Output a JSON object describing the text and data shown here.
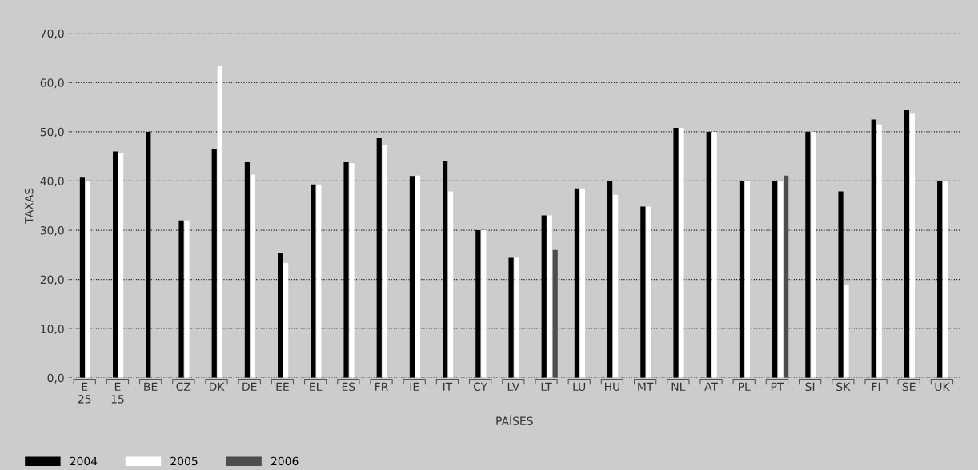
{
  "chart_data": {
    "type": "bar",
    "xlabel": "PAÍSES",
    "ylabel": "TAXAS",
    "categories": [
      "E\n25",
      "E\n15",
      "BE",
      "CZ",
      "DK",
      "DE",
      "EE",
      "EL",
      "ES",
      "FR",
      "IE",
      "IT",
      "CY",
      "LV",
      "LT",
      "LU",
      "HU",
      "MT",
      "NL",
      "AT",
      "PL",
      "PT",
      "SI",
      "SK",
      "FI",
      "SE",
      "UK"
    ],
    "series": [
      {
        "name": "2004",
        "color": "#000000",
        "values": [
          40.7,
          46.0,
          50.0,
          32.0,
          46.5,
          43.8,
          25.3,
          39.3,
          43.8,
          48.7,
          41.0,
          44.1,
          30.0,
          24.4,
          33.0,
          38.5,
          40.0,
          34.8,
          50.8,
          50.0,
          40.0,
          40.0,
          50.0,
          37.9,
          52.5,
          54.4,
          40.0
        ]
      },
      {
        "name": "2005",
        "color": "#ffffff",
        "values": [
          40.0,
          45.6,
          null,
          32.0,
          63.4,
          41.3,
          23.4,
          39.3,
          43.6,
          47.4,
          41.1,
          37.9,
          30.0,
          24.4,
          33.0,
          38.5,
          37.2,
          34.8,
          50.8,
          50.0,
          40.0,
          40.0,
          50.0,
          18.9,
          51.5,
          53.8,
          40.0
        ]
      },
      {
        "name": "2006",
        "color": "#4d4d4d",
        "values": [
          null,
          null,
          null,
          null,
          null,
          null,
          null,
          null,
          null,
          null,
          null,
          null,
          null,
          null,
          26.0,
          null,
          null,
          null,
          null,
          null,
          null,
          41.1,
          null,
          null,
          null,
          null,
          null
        ]
      }
    ],
    "ylim": [
      0,
      70
    ],
    "yticks": [
      {
        "value": 0,
        "label": "0,0"
      },
      {
        "value": 10,
        "label": "10,0"
      },
      {
        "value": 20,
        "label": "20,0"
      },
      {
        "value": 30,
        "label": "30,0"
      },
      {
        "value": 40,
        "label": "40,0"
      },
      {
        "value": 50,
        "label": "50,0"
      },
      {
        "value": 60,
        "label": "60,0"
      },
      {
        "value": 70,
        "label": "70,0"
      }
    ],
    "grid": "y",
    "legend": "bottom left"
  }
}
